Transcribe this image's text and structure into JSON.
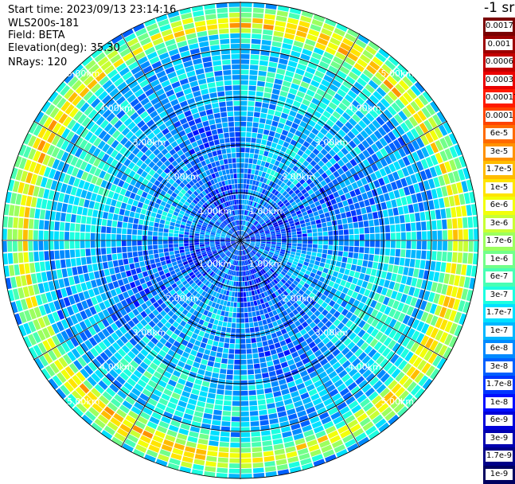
{
  "header": {
    "start_time": "Start time: 2023/09/13 23:14:16",
    "device": "WLS200s-181",
    "field": "Field: BETA",
    "elevation": "Elevation(deg): 35.30",
    "nrays": "NRays: 120"
  },
  "chart_data": {
    "type": "heatmap",
    "projection": "polar (PPI scan)",
    "field": "BETA",
    "elevation_deg": 35.3,
    "n_rays": 120,
    "range_km": [
      0,
      5.0
    ],
    "range_ring_labels": [
      "1.00km",
      "2.00km",
      "3.00km",
      "4.00km",
      "5.00km"
    ],
    "spoke_angles_deg": [
      0,
      30,
      60,
      90,
      120,
      150,
      180,
      210,
      240,
      270,
      300,
      330
    ],
    "colorbar": {
      "unit": "-1 sr",
      "scale": "log",
      "ticks": [
        "0.0017",
        "0.001",
        "0.0006",
        "0.0003",
        "0.00017",
        "0.0001",
        "6e-5",
        "3e-5",
        "1.7e-5",
        "1e-5",
        "6e-6",
        "3e-6",
        "1.7e-6",
        "1e-6",
        "6e-7",
        "3e-7",
        "1.7e-7",
        "1e-7",
        "6e-8",
        "3e-8",
        "1.7e-8",
        "1e-8",
        "6e-9",
        "3e-9",
        "1.7e-9",
        "1e-9"
      ],
      "colors": [
        "#7a0000",
        "#9c0000",
        "#c30000",
        "#ea0000",
        "#ff1a00",
        "#ff4400",
        "#ff6a00",
        "#ff9200",
        "#ffbc00",
        "#ffe400",
        "#f2ff0a",
        "#c8ff34",
        "#9cff5f",
        "#72ff8a",
        "#48ffb4",
        "#1cffe0",
        "#00e0ff",
        "#00b6ff",
        "#008aff",
        "#0060ff",
        "#0036ff",
        "#000eff",
        "#0000da",
        "#0000b0",
        "#000088",
        "#000060"
      ]
    },
    "profile_summary": [
      {
        "range_km": 0.5,
        "beta": "3e-8"
      },
      {
        "range_km": 1.0,
        "beta": "3e-8"
      },
      {
        "range_km": 1.5,
        "beta": "6e-8"
      },
      {
        "range_km": 2.0,
        "beta": "6e-8"
      },
      {
        "range_km": 2.5,
        "beta": "6e-8"
      },
      {
        "range_km": 3.0,
        "beta": "1e-7"
      },
      {
        "range_km": 3.5,
        "beta": "1.7e-7"
      },
      {
        "range_km": 4.0,
        "beta": "1e-7"
      },
      {
        "range_km": 4.3,
        "beta": "3e-7"
      },
      {
        "range_km": 4.5,
        "beta": "1e-5"
      },
      {
        "range_km": 4.7,
        "beta": "3e-6"
      },
      {
        "range_km": 5.0,
        "beta": "1e-7"
      }
    ]
  }
}
